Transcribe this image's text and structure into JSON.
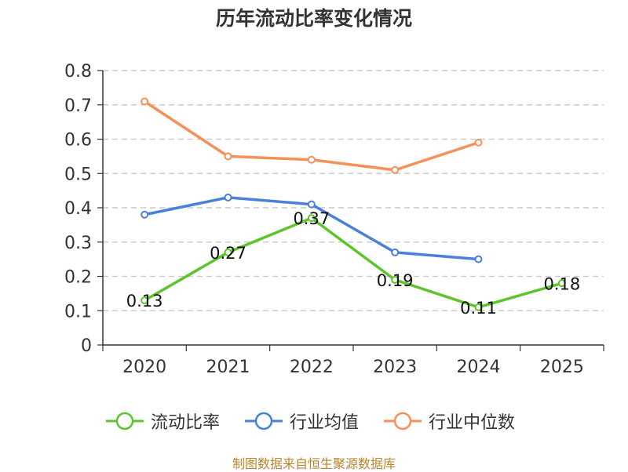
{
  "chart_data": {
    "type": "line",
    "title": "历年流动比率变化情况",
    "categories": [
      "2020",
      "2021",
      "2022",
      "2023",
      "2024",
      "2025"
    ],
    "ylim": [
      0,
      0.8
    ],
    "yticks": [
      "0",
      "0.1",
      "0.2",
      "0.3",
      "0.4",
      "0.5",
      "0.6",
      "0.7",
      "0.8"
    ],
    "ytick_values": [
      0,
      0.1,
      0.2,
      0.3,
      0.4,
      0.5,
      0.6,
      0.7,
      0.8
    ],
    "grid": true,
    "legend_position": "bottom",
    "series": [
      {
        "name": "流动比率",
        "color": "#5dc42b",
        "values": [
          0.13,
          0.27,
          0.37,
          0.19,
          0.11,
          0.18
        ],
        "labels": [
          "0.13",
          "0.27",
          "0.37",
          "0.19",
          "0.11",
          "0.18"
        ],
        "show_labels": true
      },
      {
        "name": "行业均值",
        "color": "#4a7fdc",
        "values": [
          0.38,
          0.43,
          0.41,
          0.27,
          0.25,
          null
        ],
        "show_labels": false
      },
      {
        "name": "行业中位数",
        "color": "#f6905a",
        "values": [
          0.71,
          0.55,
          0.54,
          0.51,
          0.59,
          null
        ],
        "show_labels": false
      }
    ]
  },
  "source": "制图数据来自恒生聚源数据库"
}
